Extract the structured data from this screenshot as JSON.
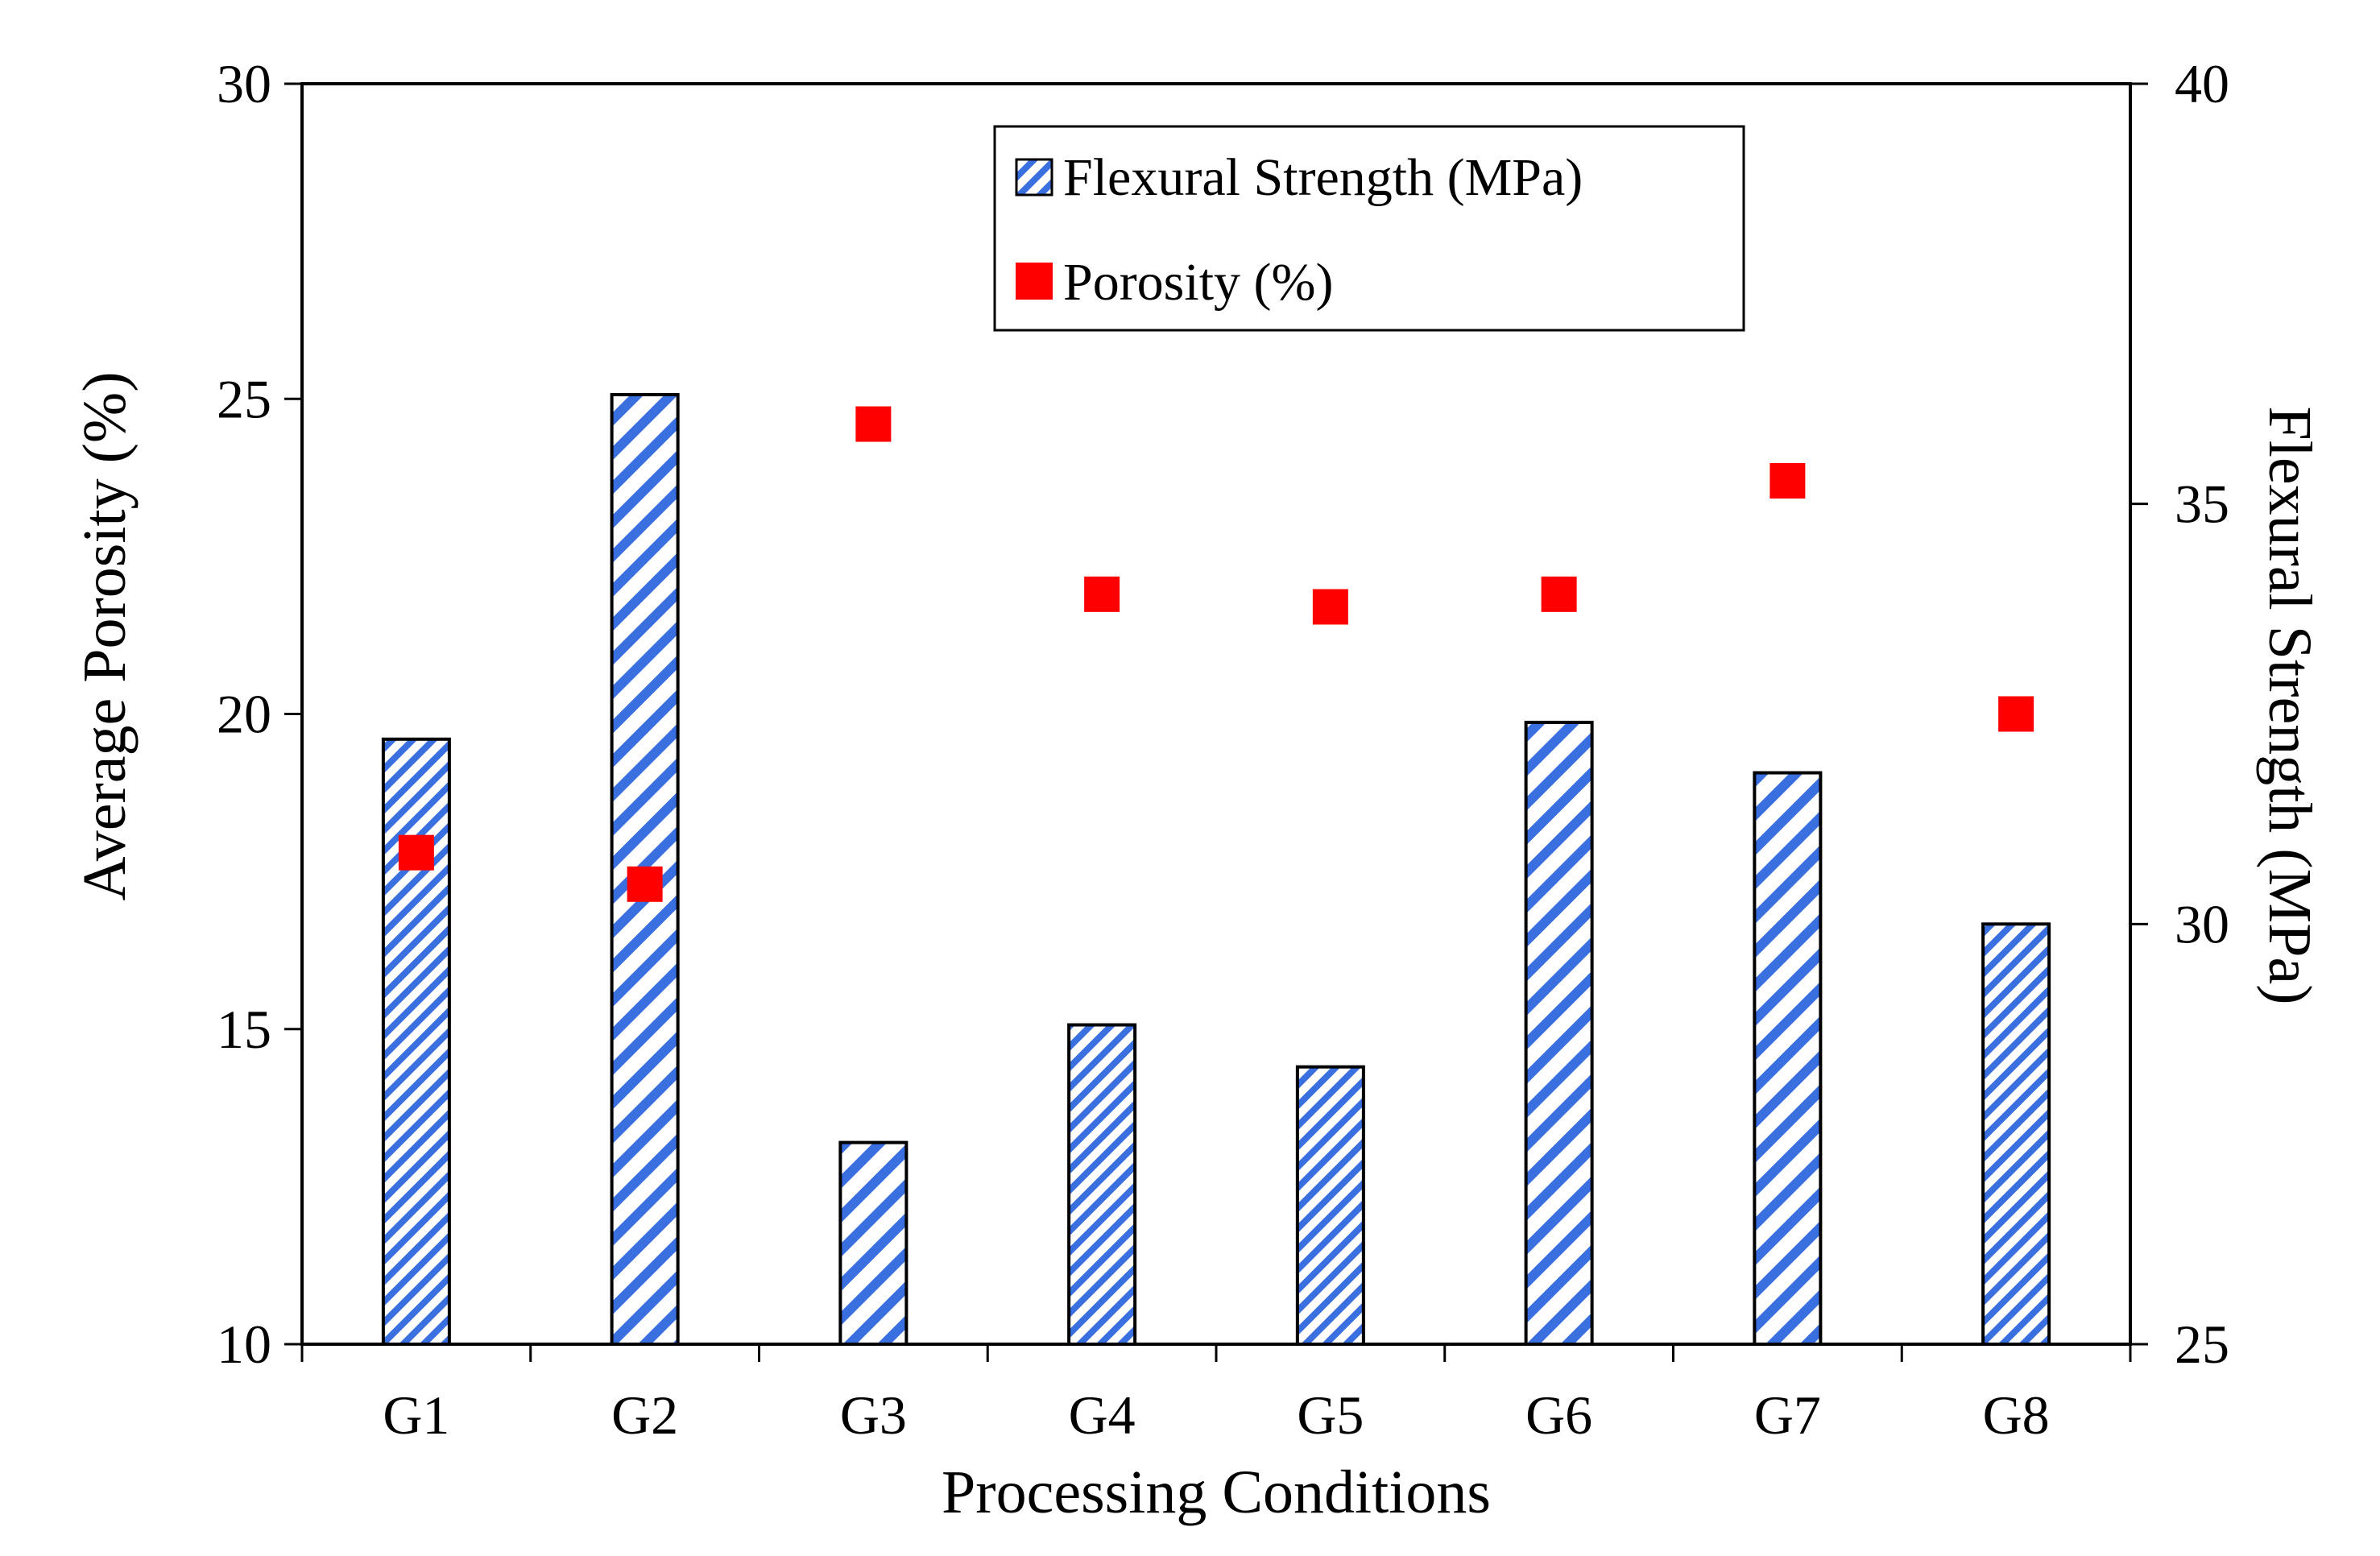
{
  "chart_data": {
    "type": "bar",
    "xlabel": "Processing Conditions",
    "ylabel_left": "Average Porosity (%)",
    "ylabel_right": "Flexural Strength (MPa)",
    "categories": [
      "G1",
      "G2",
      "G3",
      "G4",
      "G5",
      "G6",
      "G7",
      "G8"
    ],
    "ylim_left": [
      10,
      30
    ],
    "ylim_right": [
      25,
      40
    ],
    "yticks_left": [
      10,
      15,
      20,
      25,
      30
    ],
    "yticks_right": [
      25,
      30,
      35,
      40
    ],
    "yticks_left_labels": [
      "10",
      "15",
      "20",
      "25",
      "30"
    ],
    "yticks_right_labels": [
      "25",
      "30",
      "35",
      "40"
    ],
    "grid": false,
    "legend_position": "top-center",
    "series": [
      {
        "name": "Flexural Strength (MPa)",
        "kind": "bar",
        "axis": "right",
        "color": "#3a6fe0",
        "values": [
          32.2,
          36.3,
          27.4,
          28.8,
          28.3,
          32.4,
          31.8,
          30.0
        ]
      },
      {
        "name": "Porosity (%)",
        "kind": "scatter",
        "axis": "left",
        "color": "#ff0000",
        "values": [
          17.8,
          17.3,
          24.6,
          21.9,
          21.7,
          21.9,
          23.7,
          20.0
        ]
      }
    ]
  }
}
